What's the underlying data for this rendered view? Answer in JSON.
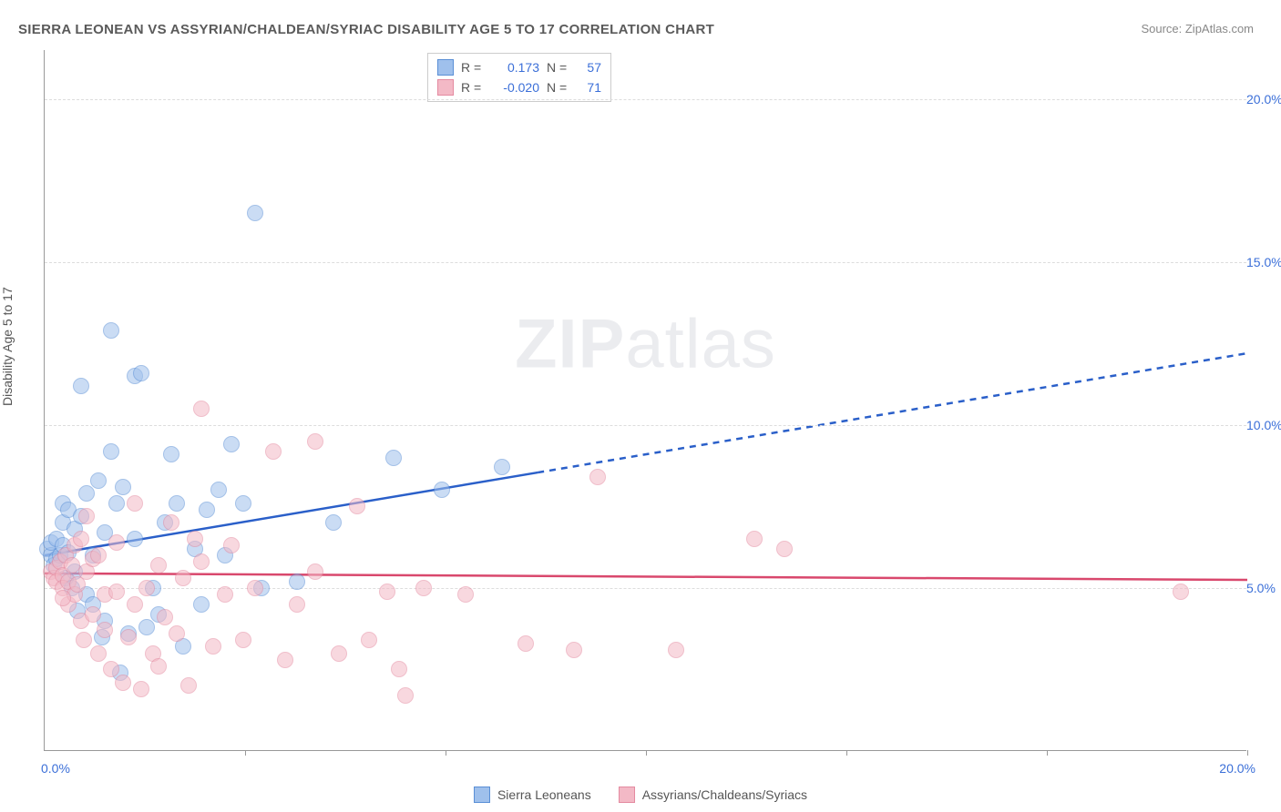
{
  "title": "SIERRA LEONEAN VS ASSYRIAN/CHALDEAN/SYRIAC DISABILITY AGE 5 TO 17 CORRELATION CHART",
  "source": "Source: ZipAtlas.com",
  "y_axis_title": "Disability Age 5 to 17",
  "watermark_bold": "ZIP",
  "watermark_light": "atlas",
  "type": "scatter",
  "background_color": "#ffffff",
  "grid_color": "#dddddd",
  "axis_color": "#999999",
  "text_color": "#555555",
  "tick_label_color": "#3b6fd8",
  "xlim": [
    0,
    20
  ],
  "ylim": [
    0,
    21.5
  ],
  "y_ticks": [
    5,
    10,
    15,
    20
  ],
  "y_tick_labels": [
    "5.0%",
    "10.0%",
    "15.0%",
    "20.0%"
  ],
  "x_ticks": [
    0,
    10,
    20
  ],
  "x_tick_labels": [
    "0.0%",
    "",
    "20.0%"
  ],
  "x_minor_ticks": [
    3.33,
    6.67,
    10,
    13.33,
    16.67,
    20
  ],
  "point_radius": 9,
  "point_opacity": 0.55,
  "series": [
    {
      "name": "Sierra Leoneans",
      "fill": "#9fc0ec",
      "stroke": "#5a8fd6",
      "stats": {
        "R_label": "R =",
        "R": "0.173",
        "N_label": "N =",
        "N": "57"
      },
      "trend": {
        "y_at_x0": 6.0,
        "y_at_xmax": 12.2,
        "solid_until_x": 8.2,
        "color": "#2a5fc9",
        "width": 2.5,
        "dash": "7 6"
      },
      "points": [
        [
          0.05,
          6.2
        ],
        [
          0.1,
          6.0
        ],
        [
          0.1,
          6.4
        ],
        [
          0.15,
          5.7
        ],
        [
          0.2,
          5.9
        ],
        [
          0.2,
          6.5
        ],
        [
          0.25,
          6.0
        ],
        [
          0.3,
          6.3
        ],
        [
          0.3,
          7.0
        ],
        [
          0.3,
          7.6
        ],
        [
          0.35,
          5.3
        ],
        [
          0.4,
          6.1
        ],
        [
          0.4,
          7.4
        ],
        [
          0.45,
          5.0
        ],
        [
          0.5,
          6.8
        ],
        [
          0.5,
          5.5
        ],
        [
          0.55,
          4.3
        ],
        [
          0.6,
          7.2
        ],
        [
          0.6,
          11.2
        ],
        [
          0.7,
          4.8
        ],
        [
          0.7,
          7.9
        ],
        [
          0.8,
          4.5
        ],
        [
          0.8,
          6.0
        ],
        [
          0.9,
          8.3
        ],
        [
          0.95,
          3.5
        ],
        [
          1.0,
          6.7
        ],
        [
          1.0,
          4.0
        ],
        [
          1.1,
          9.2
        ],
        [
          1.1,
          12.9
        ],
        [
          1.2,
          7.6
        ],
        [
          1.25,
          2.4
        ],
        [
          1.3,
          8.1
        ],
        [
          1.4,
          3.6
        ],
        [
          1.5,
          11.5
        ],
        [
          1.6,
          11.6
        ],
        [
          1.5,
          6.5
        ],
        [
          1.7,
          3.8
        ],
        [
          1.8,
          5.0
        ],
        [
          1.9,
          4.2
        ],
        [
          2.0,
          7.0
        ],
        [
          2.1,
          9.1
        ],
        [
          2.2,
          7.6
        ],
        [
          2.3,
          3.2
        ],
        [
          2.5,
          6.2
        ],
        [
          2.6,
          4.5
        ],
        [
          2.7,
          7.4
        ],
        [
          2.9,
          8.0
        ],
        [
          3.0,
          6.0
        ],
        [
          3.1,
          9.4
        ],
        [
          3.3,
          7.6
        ],
        [
          3.5,
          16.5
        ],
        [
          3.6,
          5.0
        ],
        [
          4.2,
          5.2
        ],
        [
          4.8,
          7.0
        ],
        [
          5.8,
          9.0
        ],
        [
          6.6,
          8.0
        ],
        [
          7.6,
          8.7
        ]
      ]
    },
    {
      "name": "Assyrians/Chaldeans/Syriacs",
      "fill": "#f3b9c6",
      "stroke": "#e48aa0",
      "stats": {
        "R_label": "R =",
        "R": "-0.020",
        "N_label": "N =",
        "N": "71"
      },
      "trend": {
        "y_at_x0": 5.45,
        "y_at_xmax": 5.25,
        "solid_until_x": 20,
        "color": "#d9486d",
        "width": 2.5,
        "dash": ""
      },
      "points": [
        [
          0.1,
          5.5
        ],
        [
          0.15,
          5.3
        ],
        [
          0.2,
          5.6
        ],
        [
          0.2,
          5.2
        ],
        [
          0.25,
          5.8
        ],
        [
          0.3,
          5.4
        ],
        [
          0.3,
          5.0
        ],
        [
          0.35,
          6.0
        ],
        [
          0.4,
          5.2
        ],
        [
          0.4,
          4.5
        ],
        [
          0.45,
          5.7
        ],
        [
          0.5,
          6.3
        ],
        [
          0.5,
          4.8
        ],
        [
          0.55,
          5.1
        ],
        [
          0.6,
          4.0
        ],
        [
          0.6,
          6.5
        ],
        [
          0.65,
          3.4
        ],
        [
          0.7,
          5.5
        ],
        [
          0.7,
          7.2
        ],
        [
          0.8,
          4.2
        ],
        [
          0.8,
          5.9
        ],
        [
          0.9,
          3.0
        ],
        [
          0.9,
          6.0
        ],
        [
          1.0,
          4.8
        ],
        [
          1.0,
          3.7
        ],
        [
          1.1,
          2.5
        ],
        [
          1.2,
          4.9
        ],
        [
          1.2,
          6.4
        ],
        [
          1.3,
          2.1
        ],
        [
          1.4,
          3.5
        ],
        [
          1.5,
          4.5
        ],
        [
          1.5,
          7.6
        ],
        [
          1.6,
          1.9
        ],
        [
          1.7,
          5.0
        ],
        [
          1.8,
          3.0
        ],
        [
          1.9,
          5.7
        ],
        [
          1.9,
          2.6
        ],
        [
          2.0,
          4.1
        ],
        [
          2.1,
          7.0
        ],
        [
          2.2,
          3.6
        ],
        [
          2.3,
          5.3
        ],
        [
          2.4,
          2.0
        ],
        [
          2.5,
          6.5
        ],
        [
          2.6,
          5.8
        ],
        [
          2.6,
          10.5
        ],
        [
          2.8,
          3.2
        ],
        [
          3.0,
          4.8
        ],
        [
          3.1,
          6.3
        ],
        [
          3.3,
          3.4
        ],
        [
          3.5,
          5.0
        ],
        [
          3.8,
          9.2
        ],
        [
          4.0,
          2.8
        ],
        [
          4.2,
          4.5
        ],
        [
          4.5,
          5.5
        ],
        [
          4.5,
          9.5
        ],
        [
          4.9,
          3.0
        ],
        [
          5.2,
          7.5
        ],
        [
          5.4,
          3.4
        ],
        [
          5.7,
          4.9
        ],
        [
          5.9,
          2.5
        ],
        [
          6.0,
          1.7
        ],
        [
          6.3,
          5.0
        ],
        [
          7.0,
          4.8
        ],
        [
          8.0,
          3.3
        ],
        [
          8.8,
          3.1
        ],
        [
          9.2,
          8.4
        ],
        [
          10.5,
          3.1
        ],
        [
          11.8,
          6.5
        ],
        [
          12.3,
          6.2
        ],
        [
          18.9,
          4.9
        ],
        [
          0.3,
          4.7
        ]
      ]
    }
  ]
}
